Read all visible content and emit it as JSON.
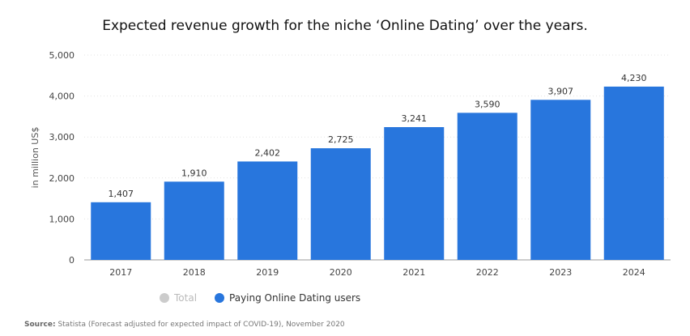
{
  "title": "Expected revenue growth for the niche ‘Online Dating’ over the years.",
  "legend": {
    "total_label": "Total",
    "total_color": "#cccccc",
    "paying_label": "Paying Online Dating users",
    "paying_color": "#2876dd"
  },
  "source": {
    "prefix": "Source:",
    "text": "Statista (Forecast adjusted for expected impact of COVID-19), November 2020"
  },
  "chart_data": {
    "type": "bar",
    "categories": [
      "2017",
      "2018",
      "2019",
      "2020",
      "2021",
      "2022",
      "2023",
      "2024"
    ],
    "series": [
      {
        "name": "Paying Online Dating users",
        "values": [
          1407,
          1910,
          2402,
          2725,
          3241,
          3590,
          3907,
          4230
        ],
        "color": "#2876dd"
      }
    ],
    "data_labels": [
      "1,407",
      "1,910",
      "2,402",
      "2,725",
      "3,241",
      "3,590",
      "3,907",
      "4,230"
    ],
    "ylabel": "in million US$",
    "ylim": [
      0,
      5000
    ],
    "yticks": [
      0,
      1000,
      2000,
      3000,
      4000,
      5000
    ],
    "ytick_labels": [
      "0",
      "1,000",
      "2,000",
      "3,000",
      "4,000",
      "5,000"
    ],
    "grid": true
  }
}
